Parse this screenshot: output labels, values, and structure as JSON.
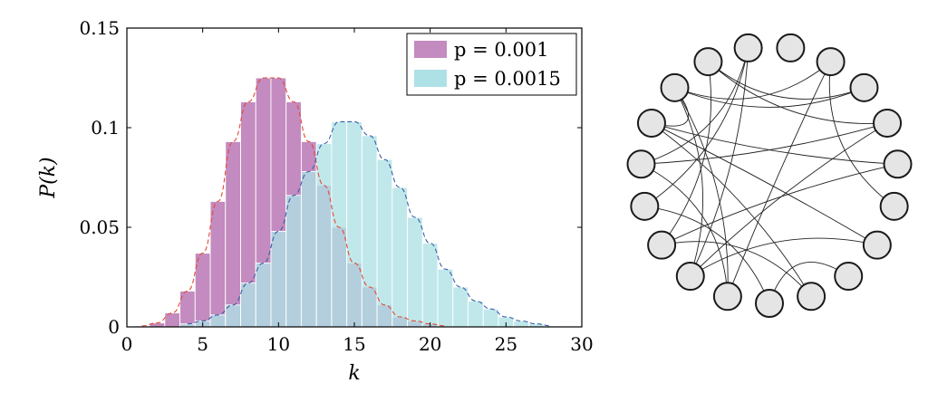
{
  "chart_data": [
    {
      "type": "bar",
      "title": "",
      "xlabel": "k",
      "ylabel": "P(k)",
      "xlim": [
        0,
        30
      ],
      "ylim": [
        0,
        0.15
      ],
      "xticks": [
        "0",
        "5",
        "10",
        "15",
        "20",
        "25",
        "30"
      ],
      "yticks": [
        "0",
        "0.05",
        "0.1",
        "0.15"
      ],
      "legend_position": "top-right",
      "grid": false,
      "overlay": "dashed fitted curve per series",
      "series": [
        {
          "name": "p = 0.001",
          "legend_text": "p = 0.001",
          "color": "#c38bbf",
          "curve_color": "#e34a33",
          "x": [
            1,
            2,
            3,
            4,
            5,
            6,
            7,
            8,
            9,
            10,
            11,
            12,
            13,
            14,
            15,
            16,
            17,
            18,
            19,
            20,
            21
          ],
          "values": [
            0.0005,
            0.002,
            0.007,
            0.018,
            0.037,
            0.063,
            0.093,
            0.113,
            0.125,
            0.125,
            0.113,
            0.093,
            0.071,
            0.05,
            0.032,
            0.02,
            0.011,
            0.005,
            0.003,
            0.0015,
            0.0005
          ]
        },
        {
          "name": "p = 0.0015",
          "legend_text": "p = 0.0015",
          "color": "#aee1e6",
          "curve_color": "#3a5fa8",
          "x": [
            4,
            5,
            6,
            7,
            8,
            9,
            10,
            11,
            12,
            13,
            14,
            15,
            16,
            17,
            18,
            19,
            20,
            21,
            22,
            23,
            24,
            25,
            26,
            27,
            28
          ],
          "values": [
            0.0015,
            0.003,
            0.006,
            0.011,
            0.022,
            0.032,
            0.048,
            0.066,
            0.078,
            0.092,
            0.103,
            0.103,
            0.096,
            0.084,
            0.07,
            0.055,
            0.042,
            0.029,
            0.02,
            0.013,
            0.009,
            0.005,
            0.003,
            0.0015,
            0.0005
          ]
        }
      ]
    },
    {
      "type": "network",
      "node_count": 19,
      "node_fill": "#e5e5e5",
      "node_stroke": "#1a1a1a",
      "edges": [
        [
          1,
          5
        ],
        [
          1,
          10
        ],
        [
          2,
          16
        ],
        [
          3,
          11
        ],
        [
          3,
          14
        ],
        [
          3,
          17
        ],
        [
          4,
          12
        ],
        [
          4,
          15
        ],
        [
          6,
          11
        ],
        [
          6,
          15
        ],
        [
          7,
          9
        ],
        [
          8,
          12
        ],
        [
          8,
          15
        ],
        [
          9,
          13
        ],
        [
          10,
          14
        ],
        [
          10,
          16
        ],
        [
          11,
          16
        ],
        [
          11,
          18
        ],
        [
          12,
          17
        ],
        [
          13,
          18
        ],
        [
          14,
          18
        ],
        [
          15,
          16
        ],
        [
          16,
          1
        ],
        [
          17,
          2
        ]
      ]
    }
  ]
}
